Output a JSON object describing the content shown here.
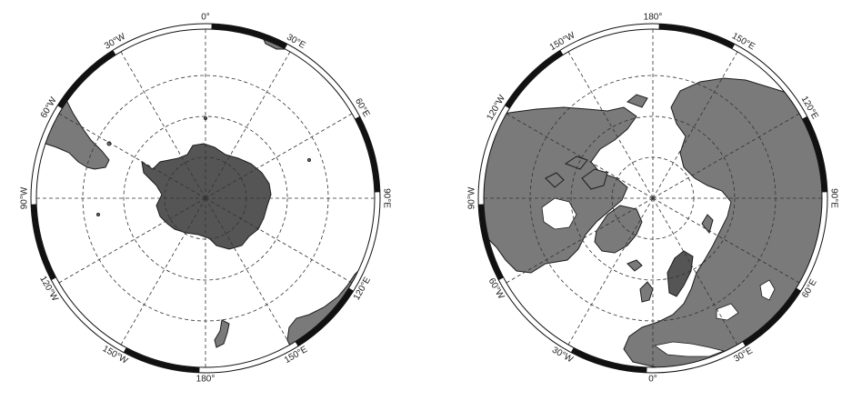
{
  "maps": [
    {
      "id": "south",
      "labels": [
        {
          "text": "0°",
          "lon": 0
        },
        {
          "text": "30°E",
          "lon": 30
        },
        {
          "text": "60°E",
          "lon": 60
        },
        {
          "text": "90°E",
          "lon": 90
        },
        {
          "text": "120°E",
          "lon": 120
        },
        {
          "text": "150°E",
          "lon": 150
        },
        {
          "text": "180°",
          "lon": 180
        },
        {
          "text": "150°W",
          "lon": -150
        },
        {
          "text": "120°W",
          "lon": -120
        },
        {
          "text": "90°W",
          "lon": -90
        },
        {
          "text": "60°W",
          "lon": -60
        },
        {
          "text": "30°W",
          "lon": -30
        }
      ]
    },
    {
      "id": "north",
      "labels": [
        {
          "text": "180°",
          "lon": 180
        },
        {
          "text": "150°E",
          "lon": 150
        },
        {
          "text": "120°E",
          "lon": 120
        },
        {
          "text": "90°E",
          "lon": 90
        },
        {
          "text": "60°E",
          "lon": 60
        },
        {
          "text": "30°E",
          "lon": 30
        },
        {
          "text": "0°",
          "lon": 0
        },
        {
          "text": "30°W",
          "lon": -30
        },
        {
          "text": "60°W",
          "lon": -60
        },
        {
          "text": "90°W",
          "lon": -90
        },
        {
          "text": "120°W",
          "lon": -120
        },
        {
          "text": "150°W",
          "lon": -150
        }
      ]
    }
  ],
  "colors": {
    "land": "#7a7a7a",
    "ocean": "#ffffff",
    "frame": "#111111",
    "grid": "#333333"
  }
}
